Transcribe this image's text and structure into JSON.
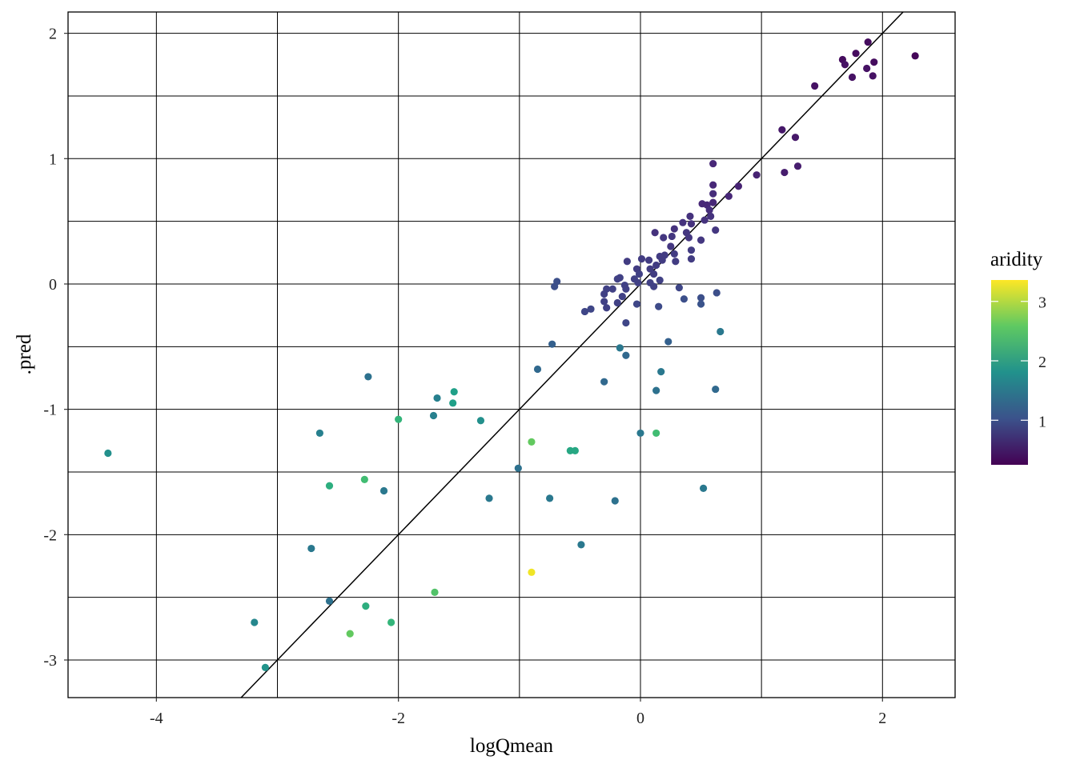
{
  "chart_data": {
    "type": "scatter",
    "xlabel": "logQmean",
    "ylabel": ".pred",
    "xlim": [
      -4.73,
      2.6
    ],
    "ylim": [
      -3.3,
      2.17
    ],
    "x_ticks": [
      -4,
      -2,
      0,
      2
    ],
    "y_ticks": [
      -3,
      -2,
      -1,
      0,
      1,
      2
    ],
    "grid": true,
    "reference_line": {
      "type": "identity",
      "slope": 1,
      "intercept": 0,
      "color": "#000000"
    },
    "color_legend": {
      "title": "aridity",
      "ticks": [
        1,
        2,
        3
      ],
      "range": [
        0.25,
        3.36
      ],
      "palette": "viridis",
      "position": "right"
    },
    "points": [
      [
        -4.4,
        -1.35,
        1.8
      ],
      [
        -3.19,
        -2.7,
        1.7
      ],
      [
        -3.1,
        -3.06,
        1.85
      ],
      [
        -2.72,
        -2.11,
        1.5
      ],
      [
        -2.57,
        -2.53,
        1.4
      ],
      [
        -2.4,
        -2.79,
        2.6
      ],
      [
        -2.27,
        -2.57,
        2.2
      ],
      [
        -2.06,
        -2.7,
        2.3
      ],
      [
        -1.7,
        -2.46,
        2.5
      ],
      [
        -0.9,
        -2.3,
        3.3
      ],
      [
        -0.49,
        -2.08,
        1.5
      ],
      [
        -2.65,
        -1.19,
        1.6
      ],
      [
        -2.57,
        -1.61,
        2.2
      ],
      [
        -2.28,
        -1.56,
        2.4
      ],
      [
        -2.12,
        -1.65,
        1.5
      ],
      [
        -2.25,
        -0.74,
        1.4
      ],
      [
        -2.0,
        -1.08,
        2.3
      ],
      [
        -1.71,
        -1.05,
        1.6
      ],
      [
        -1.68,
        -0.91,
        1.6
      ],
      [
        -1.55,
        -0.95,
        2.0
      ],
      [
        -1.54,
        -0.86,
        2.0
      ],
      [
        -1.32,
        -1.09,
        1.8
      ],
      [
        -1.25,
        -1.71,
        1.5
      ],
      [
        -1.01,
        -1.47,
        1.4
      ],
      [
        -0.9,
        -1.26,
        2.6
      ],
      [
        -0.75,
        -1.71,
        1.5
      ],
      [
        -0.58,
        -1.33,
        2.1
      ],
      [
        -0.54,
        -1.33,
        2.1
      ],
      [
        -0.21,
        -1.73,
        1.4
      ],
      [
        0.0,
        -1.19,
        1.5
      ],
      [
        0.13,
        -1.19,
        2.4
      ],
      [
        0.52,
        -1.63,
        1.5
      ],
      [
        -0.85,
        -0.68,
        1.3
      ],
      [
        -0.73,
        -0.48,
        1.2
      ],
      [
        -0.3,
        -0.78,
        1.3
      ],
      [
        -0.17,
        -0.51,
        1.5
      ],
      [
        -0.12,
        -0.57,
        1.3
      ],
      [
        0.13,
        -0.85,
        1.4
      ],
      [
        0.17,
        -0.7,
        1.5
      ],
      [
        0.62,
        -0.84,
        1.3
      ],
      [
        0.66,
        -0.38,
        1.5
      ],
      [
        0.23,
        -0.46,
        1.2
      ],
      [
        2.27,
        1.82,
        0.3
      ],
      [
        1.88,
        1.93,
        0.35
      ],
      [
        1.78,
        1.84,
        0.35
      ],
      [
        1.67,
        1.79,
        0.35
      ],
      [
        1.69,
        1.75,
        0.4
      ],
      [
        1.93,
        1.77,
        0.35
      ],
      [
        1.87,
        1.72,
        0.4
      ],
      [
        1.75,
        1.65,
        0.4
      ],
      [
        1.92,
        1.66,
        0.4
      ],
      [
        1.44,
        1.58,
        0.4
      ],
      [
        1.17,
        1.23,
        0.45
      ],
      [
        1.28,
        1.17,
        0.45
      ],
      [
        1.3,
        0.94,
        0.5
      ],
      [
        1.19,
        0.89,
        0.5
      ],
      [
        0.96,
        0.87,
        0.55
      ],
      [
        0.81,
        0.78,
        0.55
      ],
      [
        0.73,
        0.7,
        0.6
      ],
      [
        0.6,
        0.96,
        0.6
      ],
      [
        0.6,
        0.79,
        0.6
      ],
      [
        0.6,
        0.72,
        0.65
      ],
      [
        0.51,
        0.64,
        0.6
      ],
      [
        0.55,
        0.63,
        0.6
      ],
      [
        0.6,
        0.65,
        0.6
      ],
      [
        0.57,
        0.59,
        0.65
      ],
      [
        0.58,
        0.54,
        0.7
      ],
      [
        0.53,
        0.51,
        0.7
      ],
      [
        0.41,
        0.54,
        0.7
      ],
      [
        0.42,
        0.48,
        0.7
      ],
      [
        0.35,
        0.49,
        0.7
      ],
      [
        0.28,
        0.44,
        0.7
      ],
      [
        0.38,
        0.41,
        0.75
      ],
      [
        0.4,
        0.37,
        0.75
      ],
      [
        0.26,
        0.38,
        0.75
      ],
      [
        0.12,
        0.41,
        0.7
      ],
      [
        0.19,
        0.37,
        0.75
      ],
      [
        0.62,
        0.43,
        0.75
      ],
      [
        0.5,
        0.35,
        0.75
      ],
      [
        0.25,
        0.3,
        0.75
      ],
      [
        0.42,
        0.27,
        0.8
      ],
      [
        0.16,
        0.22,
        0.8
      ],
      [
        0.2,
        0.23,
        0.8
      ],
      [
        0.28,
        0.24,
        0.8
      ],
      [
        0.29,
        0.18,
        0.8
      ],
      [
        0.42,
        0.2,
        0.8
      ],
      [
        0.18,
        0.19,
        0.8
      ],
      [
        0.13,
        0.15,
        0.8
      ],
      [
        0.07,
        0.19,
        0.8
      ],
      [
        0.01,
        0.2,
        0.8
      ],
      [
        -0.11,
        0.18,
        0.8
      ],
      [
        -0.03,
        0.12,
        0.8
      ],
      [
        0.08,
        0.12,
        0.8
      ],
      [
        0.11,
        0.08,
        0.8
      ],
      [
        -0.01,
        0.08,
        0.85
      ],
      [
        -0.05,
        0.04,
        0.85
      ],
      [
        -0.02,
        0.01,
        0.85
      ],
      [
        -0.17,
        0.05,
        0.85
      ],
      [
        -0.19,
        0.04,
        0.85
      ],
      [
        -0.13,
        -0.01,
        0.85
      ],
      [
        0.08,
        0.01,
        0.85
      ],
      [
        0.11,
        -0.02,
        0.85
      ],
      [
        0.16,
        0.03,
        0.85
      ],
      [
        -0.12,
        -0.04,
        0.85
      ],
      [
        -0.28,
        -0.04,
        0.85
      ],
      [
        -0.23,
        -0.04,
        0.85
      ],
      [
        -0.3,
        -0.08,
        0.85
      ],
      [
        -0.3,
        -0.14,
        0.85
      ],
      [
        -0.15,
        -0.1,
        0.85
      ],
      [
        -0.19,
        -0.15,
        0.85
      ],
      [
        -0.28,
        -0.19,
        0.85
      ],
      [
        -0.46,
        -0.22,
        0.9
      ],
      [
        -0.41,
        -0.2,
        0.9
      ],
      [
        -0.12,
        -0.31,
        0.9
      ],
      [
        -0.03,
        -0.16,
        0.9
      ],
      [
        0.15,
        -0.18,
        0.95
      ],
      [
        0.32,
        -0.03,
        0.9
      ],
      [
        0.36,
        -0.12,
        1.0
      ],
      [
        0.5,
        -0.11,
        1.0
      ],
      [
        0.5,
        -0.16,
        1.05
      ],
      [
        0.63,
        -0.07,
        1.0
      ],
      [
        -0.69,
        0.02,
        1.0
      ],
      [
        -0.71,
        -0.02,
        1.0
      ]
    ]
  }
}
